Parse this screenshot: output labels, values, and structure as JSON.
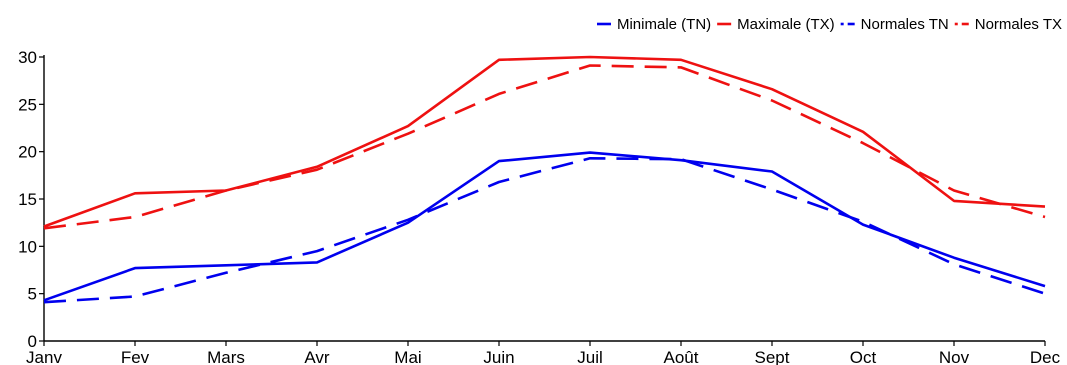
{
  "chart_data": {
    "type": "line",
    "title": "",
    "xlabel": "",
    "ylabel": "",
    "categories": [
      "Janv",
      "Fev",
      "Mars",
      "Avr",
      "Mai",
      "Juin",
      "Juil",
      "Août",
      "Sept",
      "Oct",
      "Nov",
      "Dec"
    ],
    "ylim": [
      0,
      30
    ],
    "yticks": [
      0,
      5,
      10,
      15,
      20,
      25,
      30
    ],
    "grid": false,
    "legend_position": "top-right",
    "series": [
      {
        "name": "Minimale (TN)",
        "color": "#0000ee",
        "style": "solid",
        "legend_marker": "dash",
        "values": [
          4.3,
          7.7,
          8.0,
          8.3,
          12.5,
          19.0,
          19.9,
          19.1,
          17.9,
          12.3,
          8.8,
          5.8
        ]
      },
      {
        "name": "Maximale (TX)",
        "color": "#ee1111",
        "style": "solid",
        "legend_marker": "dash",
        "values": [
          12.1,
          15.6,
          15.9,
          18.4,
          22.7,
          29.7,
          30.0,
          29.7,
          26.6,
          22.1,
          14.8,
          14.2
        ]
      },
      {
        "name": "Normales TN",
        "color": "#0000ee",
        "style": "dashed",
        "legend_marker": "dot-dash",
        "values": [
          4.1,
          4.7,
          7.2,
          9.5,
          12.8,
          16.8,
          19.3,
          19.2,
          16.0,
          12.6,
          8.1,
          5.0
        ]
      },
      {
        "name": "Normales TX",
        "color": "#ee1111",
        "style": "dashed",
        "legend_marker": "dot-dash",
        "values": [
          11.9,
          13.1,
          15.9,
          18.1,
          21.9,
          26.1,
          29.1,
          28.9,
          25.4,
          20.9,
          15.9,
          13.1
        ]
      }
    ]
  }
}
